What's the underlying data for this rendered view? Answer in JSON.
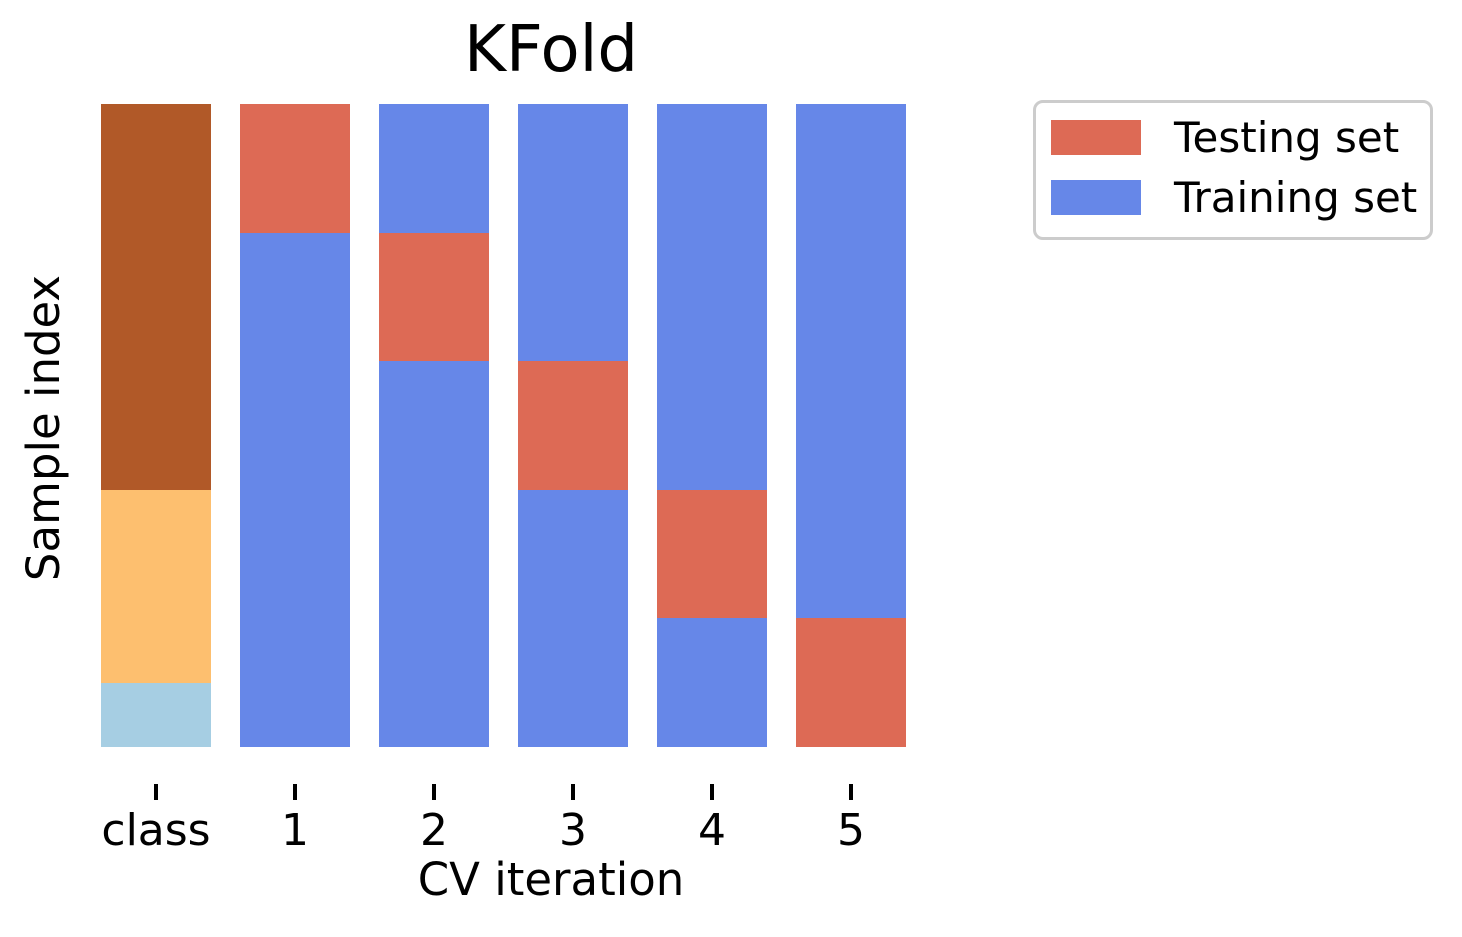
{
  "chart_data": {
    "type": "bar",
    "title": "KFold",
    "xlabel": "CV iteration",
    "ylabel": "Sample index",
    "categories": [
      "class",
      "1",
      "2",
      "3",
      "4",
      "5"
    ],
    "n_splits": 5,
    "colors": {
      "testing": "#dd6a55",
      "training": "#6687e8",
      "class-2": "#b15928",
      "class-1": "#fdbf6f",
      "class-0": "#a6cee3"
    },
    "columns": [
      {
        "label": "class",
        "segments": [
          {
            "role": "class-2",
            "pct": 60
          },
          {
            "role": "class-1",
            "pct": 30
          },
          {
            "role": "class-0",
            "pct": 10
          }
        ]
      },
      {
        "label": "1",
        "segments": [
          {
            "role": "testing",
            "pct": 20
          },
          {
            "role": "training",
            "pct": 80
          }
        ]
      },
      {
        "label": "2",
        "segments": [
          {
            "role": "training",
            "pct": 20
          },
          {
            "role": "testing",
            "pct": 20
          },
          {
            "role": "training",
            "pct": 60
          }
        ]
      },
      {
        "label": "3",
        "segments": [
          {
            "role": "training",
            "pct": 40
          },
          {
            "role": "testing",
            "pct": 20
          },
          {
            "role": "training",
            "pct": 40
          }
        ]
      },
      {
        "label": "4",
        "segments": [
          {
            "role": "training",
            "pct": 60
          },
          {
            "role": "testing",
            "pct": 20
          },
          {
            "role": "training",
            "pct": 20
          }
        ]
      },
      {
        "label": "5",
        "segments": [
          {
            "role": "training",
            "pct": 80
          },
          {
            "role": "testing",
            "pct": 20
          }
        ]
      }
    ],
    "legend": [
      {
        "label": "Testing set",
        "color_role": "testing"
      },
      {
        "label": "Training set",
        "color_role": "training"
      }
    ],
    "legend_position": "outside upper right",
    "grid": false,
    "axis_frame": false
  }
}
